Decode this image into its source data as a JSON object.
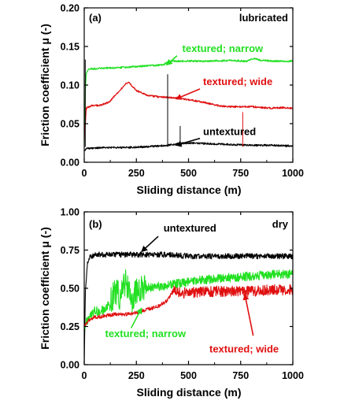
{
  "colors": {
    "untextured": "#000000",
    "textured_narrow": "#22e022",
    "textured_wide": "#e01010"
  },
  "chart_data": [
    {
      "type": "line",
      "panel_label": "(a)",
      "condition": "lubricated",
      "xlabel": "Sliding distance (m)",
      "ylabel": "Friction coefficient μ (-)",
      "xlim": [
        0,
        1000
      ],
      "ylim": [
        0,
        0.2
      ],
      "xticks": [
        "0",
        "250",
        "500",
        "750",
        "1000"
      ],
      "yticks": [
        "0.00",
        "0.05",
        "0.10",
        "0.15",
        "0.20"
      ],
      "series": [
        {
          "name": "textured; narrow",
          "color_key": "textured_narrow",
          "x": [
            0,
            5,
            10,
            20,
            40,
            100,
            200,
            300,
            380,
            400,
            430,
            500,
            600,
            700,
            780,
            800,
            820,
            850,
            900,
            950,
            1000
          ],
          "y": [
            0.02,
            0.09,
            0.115,
            0.121,
            0.121,
            0.122,
            0.123,
            0.125,
            0.126,
            0.13,
            0.131,
            0.131,
            0.131,
            0.132,
            0.131,
            0.134,
            0.134,
            0.132,
            0.131,
            0.131,
            0.131
          ]
        },
        {
          "name": "textured; wide",
          "color_key": "textured_wide",
          "x": [
            0,
            10,
            30,
            80,
            120,
            160,
            200,
            215,
            250,
            300,
            350,
            400,
            450,
            500,
            550,
            600,
            650,
            700,
            750,
            800,
            850,
            900,
            950,
            1000
          ],
          "y": [
            0.03,
            0.07,
            0.073,
            0.074,
            0.078,
            0.09,
            0.102,
            0.103,
            0.093,
            0.087,
            0.085,
            0.084,
            0.083,
            0.081,
            0.079,
            0.076,
            0.073,
            0.072,
            0.072,
            0.072,
            0.071,
            0.07,
            0.071,
            0.07
          ]
        },
        {
          "name": "untextured",
          "color_key": "untextured",
          "x": [
            0,
            10,
            30,
            100,
            200,
            300,
            350,
            400,
            450,
            500,
            600,
            700,
            800,
            900,
            1000
          ],
          "y": [
            0.015,
            0.018,
            0.018,
            0.019,
            0.019,
            0.02,
            0.021,
            0.022,
            0.024,
            0.025,
            0.024,
            0.023,
            0.022,
            0.022,
            0.021
          ]
        }
      ],
      "spikes": [
        {
          "x": 5,
          "y": 0.133,
          "color_key": "untextured"
        },
        {
          "x": 400,
          "y": 0.114,
          "color_key": "untextured"
        },
        {
          "x": 460,
          "y": 0.047,
          "color_key": "untextured"
        },
        {
          "x": 760,
          "y": 0.065,
          "color_key": "textured_wide"
        }
      ],
      "annotations": [
        {
          "text": "textured; narrow",
          "color_key": "textured_narrow",
          "text_x": 470,
          "text_y": 0.143,
          "arrow_from": [
            445,
            0.138
          ],
          "arrow_to": [
            395,
            0.126
          ]
        },
        {
          "text": "textured; wide",
          "color_key": "textured_wide",
          "text_x": 570,
          "text_y": 0.1,
          "arrow_from": [
            555,
            0.095
          ],
          "arrow_to": [
            440,
            0.082
          ]
        },
        {
          "text": "untextured",
          "color_key": "untextured",
          "text_x": 570,
          "text_y": 0.035,
          "arrow_from": [
            555,
            0.031
          ],
          "arrow_to": [
            440,
            0.022
          ]
        }
      ]
    },
    {
      "type": "line",
      "panel_label": "(b)",
      "condition": "dry",
      "xlabel": "Sliding distance (m)",
      "ylabel": "Friction coefficient μ (-)",
      "xlim": [
        0,
        1000
      ],
      "ylim": [
        0,
        1.0
      ],
      "xticks": [
        "0",
        "250",
        "500",
        "750",
        "1000"
      ],
      "yticks": [
        "0.00",
        "0.25",
        "0.50",
        "0.75",
        "1.00"
      ],
      "series": [
        {
          "name": "untextured",
          "color_key": "untextured",
          "x": [
            0,
            5,
            15,
            30,
            60,
            100,
            200,
            300,
            400,
            500,
            600,
            700,
            800,
            900,
            1000
          ],
          "y": [
            0.0,
            0.45,
            0.66,
            0.71,
            0.72,
            0.72,
            0.72,
            0.72,
            0.72,
            0.71,
            0.71,
            0.71,
            0.71,
            0.71,
            0.71
          ]
        },
        {
          "name": "textured; narrow",
          "color_key": "textured_narrow",
          "x": [
            0,
            20,
            50,
            100,
            130,
            150,
            170,
            200,
            230,
            260,
            300,
            350,
            400,
            450,
            500,
            600,
            700,
            800,
            900,
            1000
          ],
          "y": [
            0.25,
            0.3,
            0.35,
            0.36,
            0.42,
            0.49,
            0.45,
            0.55,
            0.42,
            0.5,
            0.5,
            0.51,
            0.52,
            0.53,
            0.54,
            0.56,
            0.57,
            0.58,
            0.59,
            0.59
          ]
        },
        {
          "name": "textured; wide",
          "color_key": "textured_wide",
          "x": [
            0,
            20,
            50,
            100,
            150,
            200,
            250,
            300,
            350,
            400,
            430,
            450,
            500,
            600,
            700,
            800,
            900,
            1000
          ],
          "y": [
            0.25,
            0.29,
            0.31,
            0.32,
            0.33,
            0.33,
            0.34,
            0.36,
            0.38,
            0.42,
            0.5,
            0.47,
            0.47,
            0.48,
            0.48,
            0.48,
            0.49,
            0.49
          ]
        }
      ],
      "spikes": [],
      "annotations": [
        {
          "text": "untextured",
          "color_key": "untextured",
          "text_x": 380,
          "text_y": 0.87,
          "arrow_from": [
            355,
            0.84
          ],
          "arrow_to": [
            275,
            0.74
          ]
        },
        {
          "text": "textured; narrow",
          "color_key": "textured_narrow",
          "text_x": 100,
          "text_y": 0.18,
          "arrow_from": [
            225,
            0.24
          ],
          "arrow_to": [
            275,
            0.37
          ]
        },
        {
          "text": "textured; wide",
          "color_key": "textured_wide",
          "text_x": 600,
          "text_y": 0.08,
          "arrow_from": [
            810,
            0.19
          ],
          "arrow_to": [
            770,
            0.46
          ]
        }
      ]
    }
  ]
}
